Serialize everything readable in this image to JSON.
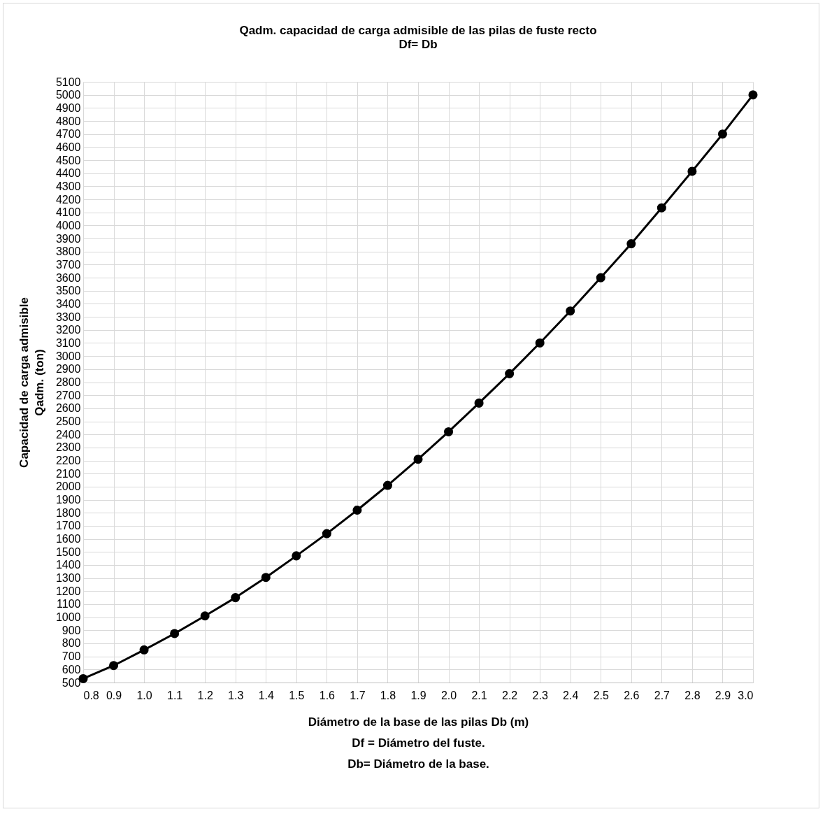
{
  "chart_data": {
    "type": "line",
    "title": "Qadm. capacidad de carga admisible de las pilas de fuste recto",
    "subtitle": "Df= Db",
    "xlabel": "Diámetro de la base de las pilas Db (m)",
    "ylabel": "Capacidad de carga admisible\nQadm. (ton)",
    "annotations": [
      "Df = Diámetro del fuste.",
      "Db= Diámetro de la base."
    ],
    "x": [
      0.8,
      0.9,
      1.0,
      1.1,
      1.2,
      1.3,
      1.4,
      1.5,
      1.6,
      1.7,
      1.8,
      1.9,
      2.0,
      2.1,
      2.2,
      2.3,
      2.4,
      2.5,
      2.6,
      2.7,
      2.8,
      2.9,
      3.0
    ],
    "series": [
      {
        "color": "#000000",
        "values": [
          530,
          630,
          750,
          875,
          1010,
          1150,
          1305,
          1470,
          1640,
          1820,
          2010,
          2210,
          2420,
          2640,
          2865,
          3100,
          3345,
          3600,
          3860,
          4135,
          4415,
          4700,
          5000
        ]
      }
    ],
    "xlim": [
      0.8,
      3.0
    ],
    "xticks": [
      0.8,
      0.9,
      {
        "value": 1,
        "label": "1.0"
      },
      1.1,
      1.2,
      1.3,
      1.4,
      1.5,
      1.6,
      1.7,
      1.8,
      1.9,
      {
        "value": 2,
        "label": "2.0"
      },
      2.1,
      2.2,
      2.3,
      2.4,
      2.5,
      2.6,
      2.7,
      2.8,
      2.9,
      {
        "value": 3,
        "label": "3.0"
      }
    ],
    "ylim": [
      500,
      5100
    ],
    "yticks": [
      500,
      600,
      700,
      800,
      900,
      1000,
      1100,
      1200,
      1300,
      1400,
      1500,
      1600,
      1700,
      1800,
      1900,
      2000,
      2100,
      2200,
      2300,
      2400,
      2500,
      2600,
      2700,
      2800,
      2900,
      3000,
      3100,
      3200,
      3300,
      3400,
      3500,
      3600,
      3700,
      3800,
      3900,
      4000,
      4100,
      4200,
      4300,
      4400,
      4500,
      4600,
      4700,
      4800,
      4900,
      5000,
      5100
    ],
    "grid": true,
    "marker": "circle",
    "line_style": "solid"
  }
}
